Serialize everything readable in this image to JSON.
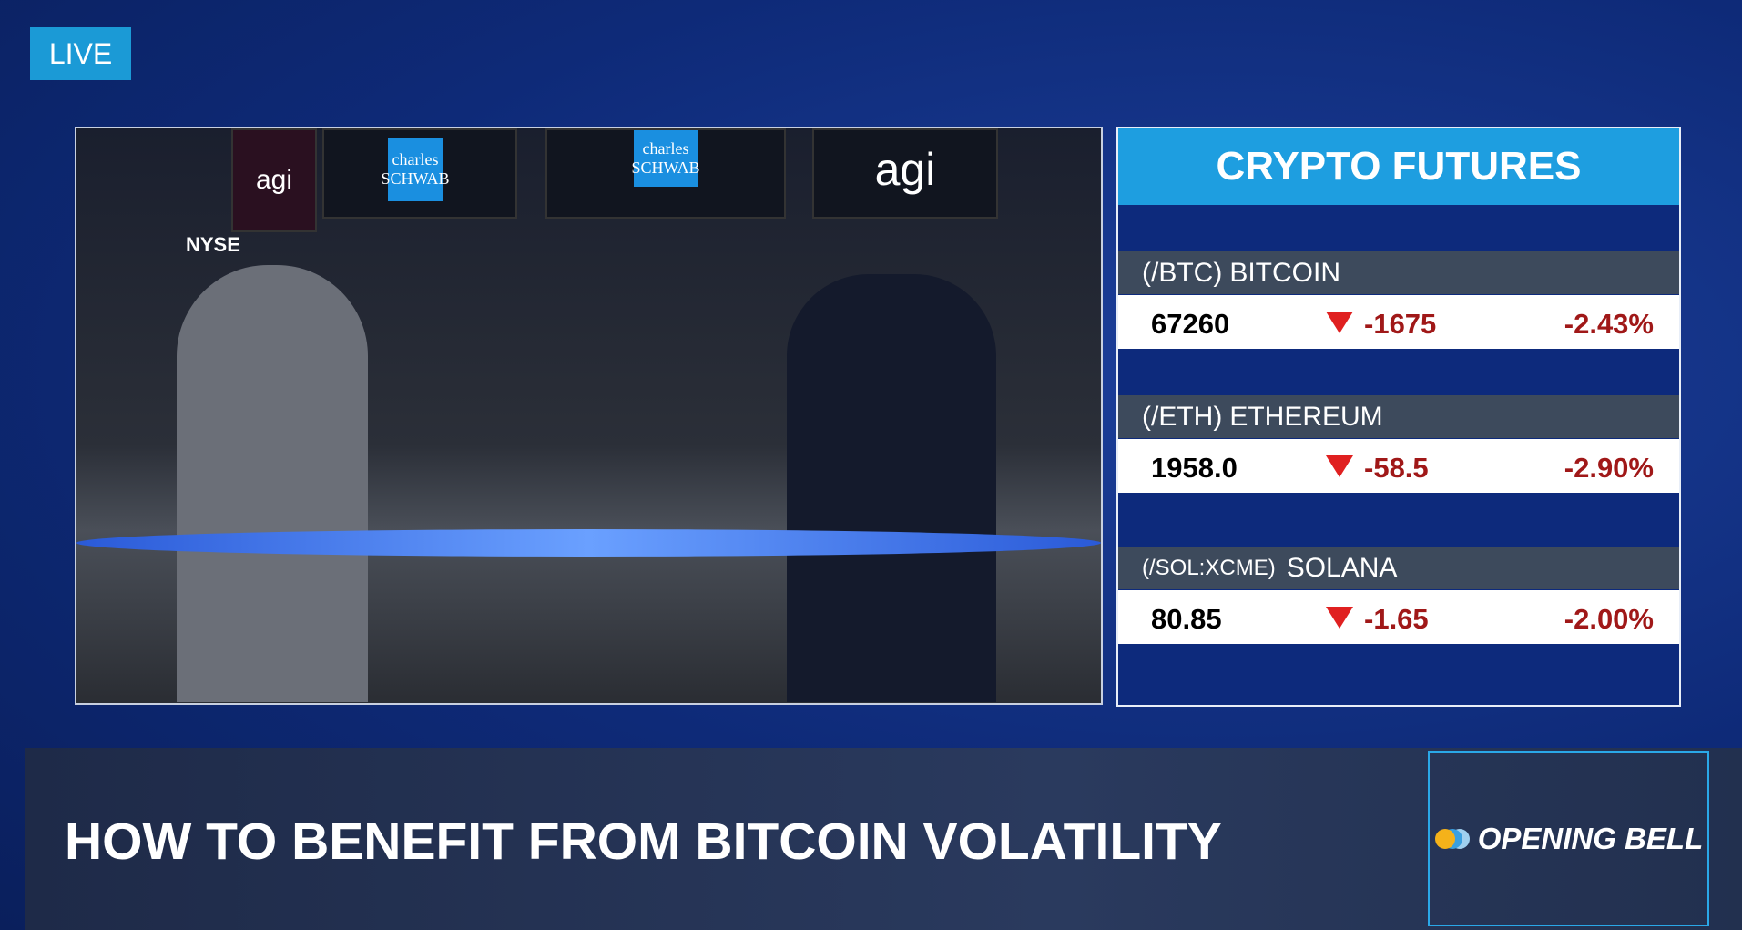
{
  "live_badge": "LIVE",
  "video": {
    "scene_labels": [
      "charles SCHWAB",
      "charles SCHWAB",
      "agi",
      "agi",
      "NYSE"
    ]
  },
  "crypto_panel": {
    "title": "CRYPTO FUTURES",
    "rows": [
      {
        "symbol": "(/BTC)",
        "name": "BITCOIN",
        "price": "67260",
        "change": "-1675",
        "percent": "-2.43%"
      },
      {
        "symbol": "(/ETH)",
        "name": "ETHEREUM",
        "price": "1958.0",
        "change": "-58.5",
        "percent": "-2.90%"
      },
      {
        "symbol": "(/SOL:XCME)",
        "name": "SOLANA",
        "price": "80.85",
        "change": "-1.65",
        "percent": "-2.00%"
      }
    ]
  },
  "banner": {
    "headline": "HOW TO BENEFIT FROM BITCOIN VOLATILITY",
    "show": "OPENING BELL"
  }
}
